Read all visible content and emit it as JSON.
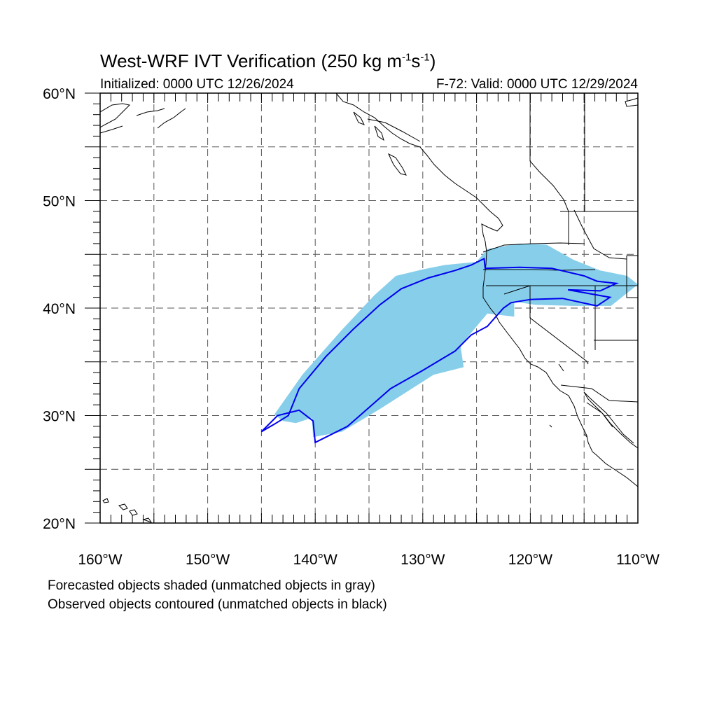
{
  "title": {
    "main": "West-WRF IVT Verification (250 kg m",
    "exp1": "-1",
    "mid": "s",
    "exp2": "-1",
    "close": ")"
  },
  "initialized": "Initialized: 0000 UTC 12/26/2024",
  "valid": "F-72: Valid: 0000 UTC 12/29/2024",
  "captions": [
    "Forecasted objects shaded (unmatched objects in gray)",
    "Observed objects contoured (unmatched objects in black)"
  ],
  "axes": {
    "lon_range": [
      -160,
      -110
    ],
    "lat_range": [
      20,
      60
    ],
    "lon_labels": [
      "160°W",
      "150°W",
      "140°W",
      "130°W",
      "120°W",
      "110°W"
    ],
    "lat_labels": [
      "60°N",
      "50°N",
      "40°N",
      "30°N",
      "20°N"
    ],
    "grid_step_deg": 5,
    "grid_style": "dashed"
  },
  "colors": {
    "forecast_fill": "#87ceeb",
    "observed_contour": "#0000ee",
    "coastline": "#000000",
    "grid": "#555555"
  },
  "forecast_object": {
    "description_lonlat": [
      [
        -143.8,
        30.1
      ],
      [
        -141.2,
        33.8
      ],
      [
        -137.5,
        38.0
      ],
      [
        -134.5,
        41.2
      ],
      [
        -132.5,
        43.0
      ],
      [
        -130.0,
        43.6
      ],
      [
        -128.0,
        44.0
      ],
      [
        -125.0,
        44.3
      ],
      [
        -124.0,
        45.5
      ],
      [
        -121.0,
        46.0
      ],
      [
        -118.5,
        45.9
      ],
      [
        -116.0,
        44.5
      ],
      [
        -113.5,
        43.5
      ],
      [
        -111.0,
        43.0
      ],
      [
        -110.0,
        42.2
      ],
      [
        -112.5,
        40.2
      ],
      [
        -116.0,
        40.2
      ],
      [
        -119.5,
        40.3
      ],
      [
        -121.5,
        40.6
      ],
      [
        -121.5,
        39.2
      ],
      [
        -124.0,
        39.5
      ],
      [
        -126.5,
        36.5
      ],
      [
        -126.2,
        34.5
      ],
      [
        -129.0,
        33.8
      ],
      [
        -134.0,
        30.6
      ],
      [
        -137.5,
        28.5
      ],
      [
        -140.2,
        28.0
      ],
      [
        -140.3,
        29.8
      ],
      [
        -141.8,
        29.3
      ],
      [
        -143.0,
        29.5
      ]
    ]
  },
  "observed_object": {
    "description_lonlat": [
      [
        -145.0,
        28.5
      ],
      [
        -143.8,
        29.2
      ],
      [
        -142.5,
        30.0
      ],
      [
        -141.5,
        32.5
      ],
      [
        -139.0,
        35.5
      ],
      [
        -136.5,
        38.0
      ],
      [
        -134.0,
        40.3
      ],
      [
        -132.0,
        41.8
      ],
      [
        -129.5,
        42.8
      ],
      [
        -127.0,
        43.5
      ],
      [
        -125.5,
        44.0
      ],
      [
        -124.3,
        44.6
      ],
      [
        -124.2,
        43.7
      ],
      [
        -121.0,
        43.8
      ],
      [
        -118.0,
        43.7
      ],
      [
        -115.0,
        43.0
      ],
      [
        -113.8,
        42.5
      ],
      [
        -112.0,
        42.3
      ],
      [
        -113.5,
        41.6
      ],
      [
        -116.5,
        41.7
      ],
      [
        -112.6,
        41.0
      ],
      [
        -113.8,
        40.2
      ],
      [
        -117.0,
        40.9
      ],
      [
        -120.0,
        40.8
      ],
      [
        -121.8,
        40.5
      ],
      [
        -122.5,
        40.0
      ],
      [
        -124.0,
        38.3
      ],
      [
        -125.5,
        37.5
      ],
      [
        -127.0,
        36.0
      ],
      [
        -130.0,
        34.2
      ],
      [
        -133.0,
        32.5
      ],
      [
        -137.0,
        29.0
      ],
      [
        -140.0,
        27.5
      ],
      [
        -140.2,
        29.5
      ],
      [
        -141.5,
        30.5
      ],
      [
        -143.5,
        30.0
      ]
    ]
  }
}
